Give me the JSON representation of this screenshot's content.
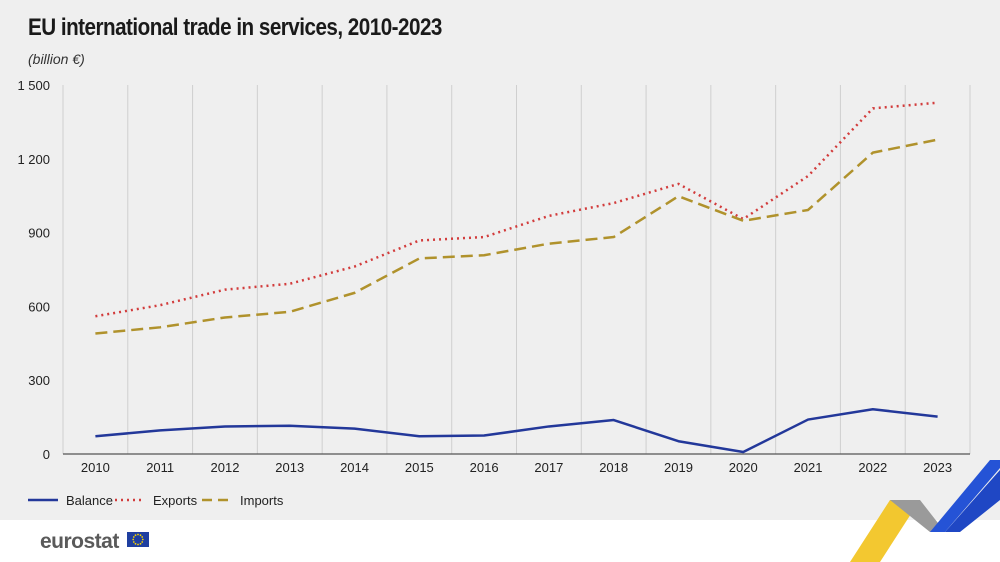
{
  "header": {
    "title": "EU international trade in services, 2010-2023",
    "subtitle": "(billion €)"
  },
  "chart_data": {
    "type": "line",
    "title": "EU international trade in services, 2010-2023",
    "subtitle": "(billion €)",
    "xlabel": "",
    "ylabel": "billion €",
    "x": [
      "2010",
      "2011",
      "2012",
      "2013",
      "2014",
      "2015",
      "2016",
      "2017",
      "2018",
      "2019",
      "2020",
      "2021",
      "2022",
      "2023"
    ],
    "ylim": [
      0,
      1500
    ],
    "yticks": [
      0,
      300,
      600,
      900,
      1200,
      1500
    ],
    "ytick_labels": [
      "0",
      "300",
      "600",
      "900",
      "1 200",
      "1 500"
    ],
    "grid": "vertical",
    "legend": "bottom-left",
    "series": [
      {
        "name": "Balance",
        "color": "#23389a",
        "style": "solid",
        "values": [
          72,
          96,
          112,
          115,
          103,
          72,
          75,
          112,
          138,
          52,
          8,
          140,
          182,
          152
        ]
      },
      {
        "name": "Exports",
        "color": "#d23c3c",
        "style": "dotted",
        "values": [
          560,
          605,
          668,
          692,
          762,
          868,
          882,
          968,
          1020,
          1098,
          955,
          1130,
          1405,
          1428
        ]
      },
      {
        "name": "Imports",
        "color": "#b0922c",
        "style": "dashed",
        "values": [
          490,
          515,
          555,
          578,
          655,
          795,
          808,
          855,
          882,
          1048,
          948,
          992,
          1225,
          1278
        ]
      }
    ]
  },
  "footer": {
    "brand": "eurostat",
    "flag_icon": "eu-flag-icon"
  }
}
